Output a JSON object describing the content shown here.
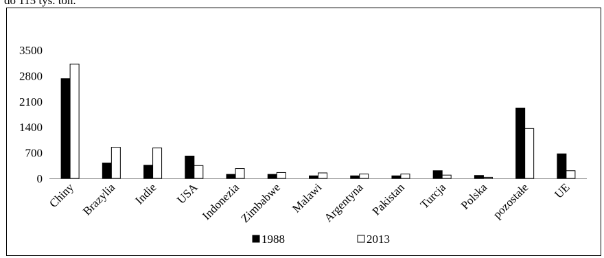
{
  "header_text": "do 115 tys. ton.",
  "colors": {
    "series_1988": "#000000",
    "series_2013": "#ffffff",
    "bar_stroke": "#000000",
    "axis": "#868686"
  },
  "chart_data": {
    "type": "bar",
    "title": "",
    "xlabel": "",
    "ylabel": "",
    "ylim": [
      0,
      3500
    ],
    "yticks": [
      "0",
      "700",
      "1400",
      "2100",
      "2800",
      "3500"
    ],
    "grid": false,
    "legend": "bottom",
    "categories": [
      "Chiny",
      "Brazylia",
      "Indie",
      "USA",
      "Indonezia",
      "Zimbabwe",
      "Malawi",
      "Argentyna",
      "Pakistan",
      "Turcja",
      "Polska",
      "pozostałe",
      "UE"
    ],
    "series": [
      {
        "name": "1988",
        "values": [
          2720,
          420,
          360,
          610,
          110,
          110,
          70,
          70,
          70,
          210,
          80,
          1920,
          670
        ]
      },
      {
        "name": "2013",
        "values": [
          3120,
          850,
          830,
          350,
          270,
          160,
          150,
          120,
          120,
          90,
          30,
          1360,
          210
        ]
      }
    ]
  }
}
